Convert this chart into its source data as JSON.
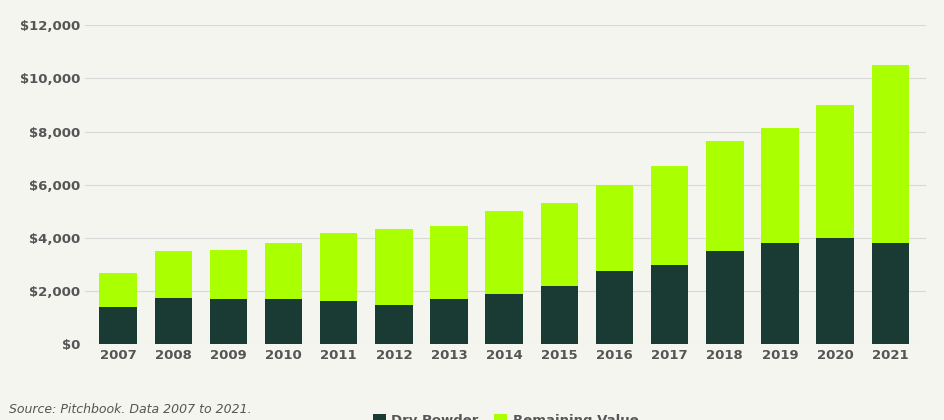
{
  "years": [
    2007,
    2008,
    2009,
    2010,
    2011,
    2012,
    2013,
    2014,
    2015,
    2016,
    2017,
    2018,
    2019,
    2020,
    2021
  ],
  "dry_powder": [
    1400,
    1750,
    1700,
    1700,
    1650,
    1500,
    1700,
    1900,
    2200,
    2750,
    3000,
    3500,
    3800,
    4000,
    3800
  ],
  "remaining_value": [
    1300,
    1750,
    1850,
    2100,
    2550,
    2850,
    2750,
    3100,
    3100,
    3250,
    3700,
    4150,
    4350,
    5000,
    6700
  ],
  "dry_powder_color": "#1a3a34",
  "remaining_value_color": "#aaff00",
  "background_color": "#f5f5f0",
  "grid_color": "#d8d8d8",
  "axis_label_color": "#555555",
  "ylim": [
    0,
    12000
  ],
  "yticks": [
    0,
    2000,
    4000,
    6000,
    8000,
    10000,
    12000
  ],
  "legend_label_dry": "Dry Powder",
  "legend_label_remaining": "Remaining Value",
  "source_text": "Source: Pitchbook. Data 2007 to 2021.",
  "bar_width": 0.68
}
